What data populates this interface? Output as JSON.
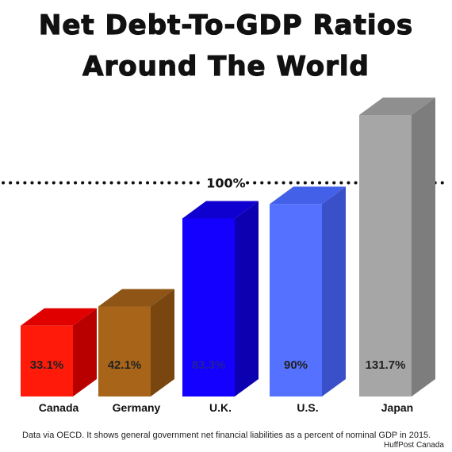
{
  "chart_data": {
    "type": "bar",
    "title_lines": [
      "Net Debt-To-GDP Ratios",
      "Around The World"
    ],
    "categories": [
      "Canada",
      "Germany",
      "U.K.",
      "U.S.",
      "Japan"
    ],
    "values": [
      33.1,
      42.1,
      83.3,
      90,
      131.7
    ],
    "value_labels": [
      "33.1%",
      "42.1%",
      "83.3%",
      "90%",
      "131.7%"
    ],
    "reference_line": {
      "value": 100,
      "label": "100%"
    },
    "colors": [
      "#ff1a0a",
      "#a8651a",
      "#1400ff",
      "#5472ff",
      "#a6a6a6"
    ],
    "side_colors": [
      "#b80000",
      "#7a4610",
      "#0d00b0",
      "#3a50c8",
      "#7d7d7d"
    ],
    "top_colors": [
      "#e00000",
      "#8e5516",
      "#1000d0",
      "#4260e8",
      "#8f8f8f"
    ],
    "label_colors": [
      "#222222",
      "#222222",
      "#222299",
      "#222222",
      "#222222"
    ],
    "xlabel": "",
    "ylabel": "",
    "ylim": [
      0,
      131.7
    ],
    "grid": false,
    "legend": "none"
  },
  "footer": {
    "note": "Data via OECD. It shows general government net financial liabilities as a percent of nominal GDP in 2015.",
    "credit": "HuffPost Canada"
  }
}
